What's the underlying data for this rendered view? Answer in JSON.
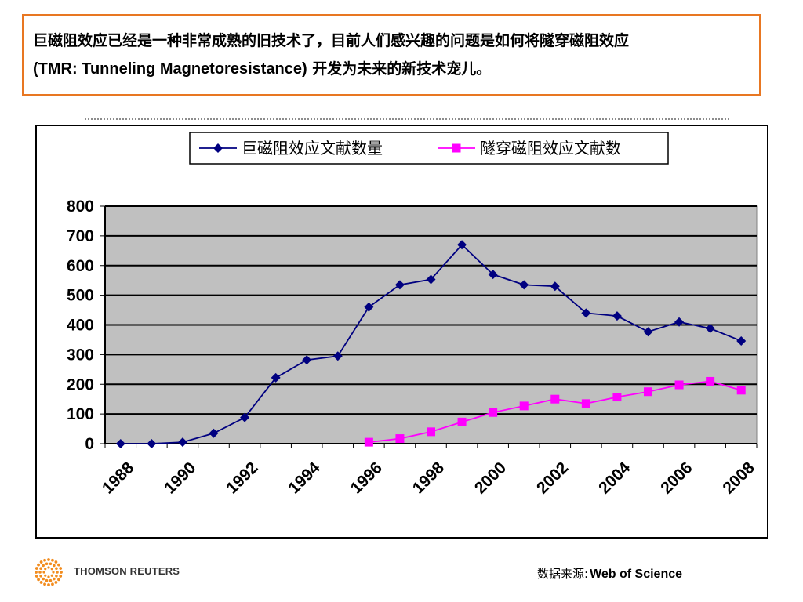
{
  "intro": {
    "line1": "巨磁阻效应已经是一种非常成熟的旧技术了，目前人们感兴趣的问题是如何将隧穿磁阻效应",
    "line2_prefix": "(",
    "line2_en": "TMR: Tunneling Magnetoresistance)",
    "line2_suffix": " 开发为未来的新技术宠儿。"
  },
  "source": {
    "label": "数据来源:",
    "value": "Web of  Science"
  },
  "logo": {
    "text": "THOMSON REUTERS",
    "icon": "sunburst-dots-icon",
    "color": "#f28c1e"
  },
  "colors": {
    "accent_border": "#e87722",
    "plot_bg": "#c0c0c0",
    "series1": "#000080",
    "series2": "#ff00ff"
  },
  "chart_data": {
    "type": "line",
    "title": "",
    "xlabel": "",
    "ylabel": "",
    "ylim": [
      0,
      800
    ],
    "yticks": [
      0,
      100,
      200,
      300,
      400,
      500,
      600,
      700,
      800
    ],
    "xlim": [
      1988,
      2008
    ],
    "xticks": [
      "1988",
      "1990",
      "1992",
      "1994",
      "1996",
      "1998",
      "2000",
      "2002",
      "2004",
      "2006",
      "2008"
    ],
    "grid": "horizontal",
    "legend_position": "top-center",
    "series": [
      {
        "name": "巨磁阻效应文献数量",
        "marker": "diamond",
        "color": "#000080",
        "x": [
          1988,
          1989,
          1990,
          1991,
          1992,
          1993,
          1994,
          1995,
          1996,
          1997,
          1998,
          1999,
          2000,
          2001,
          2002,
          2003,
          2004,
          2005,
          2006,
          2007,
          2008
        ],
        "y": [
          0,
          0,
          5,
          35,
          88,
          222,
          282,
          295,
          460,
          535,
          553,
          670,
          570,
          535,
          530,
          440,
          430,
          377,
          410,
          388,
          346
        ]
      },
      {
        "name": "隧穿磁阻效应文献数",
        "marker": "square",
        "color": "#ff00ff",
        "x": [
          1996,
          1997,
          1998,
          1999,
          2000,
          2001,
          2002,
          2003,
          2004,
          2005,
          2006,
          2007,
          2008
        ],
        "y": [
          5,
          17,
          40,
          73,
          105,
          127,
          150,
          135,
          157,
          175,
          198,
          210,
          180
        ]
      }
    ]
  }
}
